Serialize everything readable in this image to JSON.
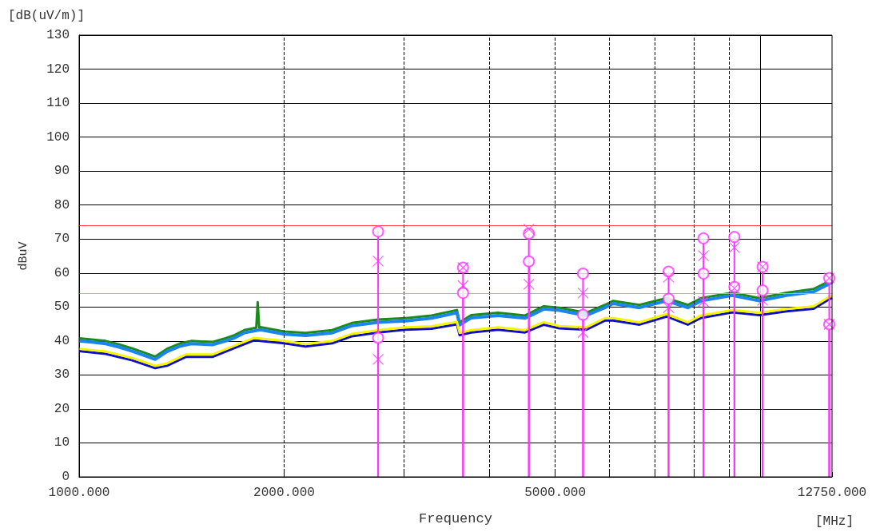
{
  "chart_data": {
    "type": "line",
    "xlabel": "Frequency",
    "ylabel": "dBuV",
    "annotations": [
      "[dB(uV/m)]",
      "[MHz]"
    ],
    "log": "x",
    "grid": true,
    "xlim": [
      1000,
      12750
    ],
    "xticks": [
      {
        "value": 1000,
        "label": "1000.000"
      },
      {
        "value": 2000,
        "label": "2000.000"
      },
      {
        "value": 3000,
        "label": null
      },
      {
        "value": 4000,
        "label": null
      },
      {
        "value": 5000,
        "label": "5000.000"
      },
      {
        "value": 6000,
        "label": null
      },
      {
        "value": 7000,
        "label": null
      },
      {
        "value": 8000,
        "label": null
      },
      {
        "value": 9000,
        "label": null
      },
      {
        "value": 10000,
        "label": null
      },
      {
        "value": 12750,
        "label": "12750.000"
      }
    ],
    "ylim": [
      0,
      130
    ],
    "yticks": [
      0,
      10,
      20,
      30,
      40,
      50,
      60,
      70,
      80,
      90,
      100,
      110,
      120,
      130
    ],
    "ref_lines": [
      {
        "axis": "y",
        "value": 74,
        "color": "#ff4040"
      },
      {
        "axis": "y",
        "value": 54,
        "color": "#ff9a70"
      }
    ],
    "series": [
      {
        "color": "#1b8a1b",
        "marker": "none",
        "x": [
          1000,
          1050,
          1094,
          1145,
          1197,
          1253,
          1293,
          1346,
          1408,
          1460,
          1569,
          1641,
          1686,
          1748,
          1820,
          1829,
          1838,
          1845,
          2000,
          2150,
          2353,
          2515,
          2748,
          3011,
          3293,
          3587,
          3620,
          3765,
          4121,
          4515,
          4813,
          5072,
          5551,
          5915,
          6085,
          6649,
          7287,
          7829,
          8190,
          9102,
          9974,
          10930,
          11980,
          12540,
          12750
        ],
        "values": [
          40.8,
          40.4,
          40.0,
          39.0,
          37.8,
          36.4,
          35.4,
          37.7,
          39.3,
          40.0,
          39.7,
          40.8,
          41.6,
          43.2,
          43.9,
          51.4,
          44.0,
          44.1,
          42.8,
          42.4,
          43.2,
          45.3,
          46.3,
          46.7,
          47.5,
          49.1,
          45.5,
          47.6,
          48.3,
          47.5,
          50.2,
          49.8,
          48.3,
          50.6,
          51.8,
          50.6,
          52.6,
          50.6,
          52.6,
          54.2,
          52.6,
          54.2,
          55.3,
          57.3,
          58.1
        ]
      },
      {
        "color": "#1a86ec",
        "marker": "none",
        "x": [
          1000,
          1050,
          1094,
          1145,
          1197,
          1253,
          1293,
          1346,
          1408,
          1460,
          1569,
          1641,
          1686,
          1748,
          1845,
          2000,
          2150,
          2353,
          2515,
          2748,
          3011,
          3293,
          3587,
          3620,
          3765,
          4121,
          4515,
          4813,
          5072,
          5551,
          5915,
          6085,
          6649,
          7287,
          7829,
          8190,
          9102,
          9974,
          10930,
          11980,
          12540,
          12750
        ],
        "values": [
          40.0,
          39.6,
          39.2,
          38.2,
          37.0,
          35.6,
          34.6,
          36.9,
          38.5,
          39.2,
          38.9,
          40.0,
          40.8,
          42.4,
          43.3,
          42.0,
          41.6,
          42.4,
          44.5,
          45.5,
          45.9,
          46.7,
          48.3,
          44.7,
          46.8,
          47.5,
          46.7,
          49.4,
          49.0,
          47.5,
          49.8,
          51.0,
          49.8,
          51.8,
          49.8,
          51.8,
          53.4,
          51.8,
          53.4,
          54.5,
          56.5,
          57.3
        ]
      },
      {
        "color": "#1010c0",
        "marker": "none",
        "x": [
          1000,
          1094,
          1197,
          1293,
          1346,
          1434,
          1569,
          1686,
          1806,
          2000,
          2150,
          2353,
          2515,
          2748,
          3011,
          3293,
          3587,
          3620,
          3765,
          4121,
          4515,
          4813,
          5072,
          5551,
          5915,
          6085,
          6649,
          7287,
          7829,
          8190,
          9102,
          9974,
          10930,
          11980,
          12540,
          12750
        ],
        "values": [
          37.0,
          36.2,
          34.3,
          32.0,
          32.7,
          35.3,
          35.3,
          37.8,
          40.2,
          39.3,
          38.4,
          39.3,
          41.4,
          42.5,
          43.3,
          43.6,
          44.9,
          41.7,
          42.5,
          43.3,
          42.5,
          44.8,
          43.7,
          43.3,
          46.0,
          46.0,
          44.8,
          47.2,
          44.8,
          46.8,
          48.4,
          47.6,
          48.7,
          49.5,
          51.9,
          52.7
        ]
      },
      {
        "color": "#f5f500",
        "marker": "none",
        "x": [
          1000,
          1094,
          1197,
          1293,
          1346,
          1434,
          1569,
          1686,
          1806,
          2000,
          2150,
          2353,
          2515,
          2748,
          3011,
          3293,
          3587,
          3620,
          3765,
          4121,
          4515,
          4813,
          5072,
          5551,
          5915,
          6085,
          6649,
          7287,
          7829,
          8190,
          9102,
          9974,
          10930,
          11980,
          12540,
          12750
        ],
        "values": [
          37.7,
          36.9,
          35.0,
          32.7,
          33.4,
          36.0,
          36.0,
          38.5,
          40.9,
          40.0,
          39.1,
          40.0,
          42.1,
          43.2,
          44.0,
          44.3,
          45.6,
          42.4,
          43.2,
          44.0,
          43.2,
          45.5,
          44.4,
          44.0,
          46.7,
          46.7,
          45.5,
          47.9,
          45.5,
          47.5,
          49.1,
          48.3,
          49.4,
          50.2,
          52.6,
          53.4
        ]
      },
      {
        "type": "lollipop",
        "color": "#ff33ff",
        "marker": "circle",
        "x": [
          2748,
          2748,
          3662,
          3662,
          4575,
          4575,
          5494,
          5494,
          7337,
          7337,
          8255,
          8255,
          9165,
          9165,
          10081,
          10081,
          12630,
          12630
        ],
        "values": [
          72.2,
          40.9,
          61.6,
          54.1,
          71.6,
          63.4,
          59.8,
          47.7,
          60.4,
          52.4,
          70.2,
          59.8,
          70.6,
          55.9,
          61.8,
          54.9,
          58.5,
          44.9
        ]
      },
      {
        "type": "scatter",
        "color": "#ff33ff",
        "marker": "cross",
        "x": [
          2748,
          2748,
          3662,
          3662,
          4575,
          4575,
          5494,
          5494,
          7337,
          7337,
          8255,
          8255,
          9165,
          9165,
          10081,
          10081,
          12630,
          12630
        ],
        "values": [
          63.5,
          34.6,
          61.6,
          56.3,
          72.9,
          56.7,
          54.1,
          42.5,
          58.8,
          49.8,
          65.1,
          51.6,
          67.5,
          55.5,
          61.8,
          52.0,
          58.5,
          44.9
        ]
      }
    ]
  }
}
